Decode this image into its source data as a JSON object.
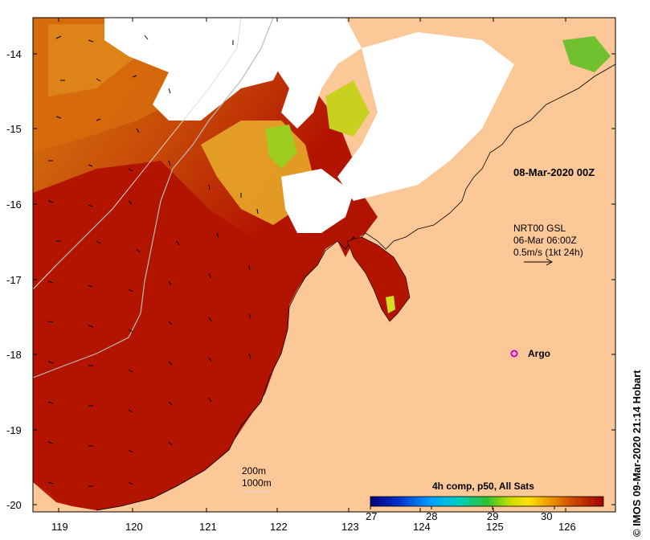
{
  "map": {
    "lon_ticks": [
      "119",
      "120",
      "121",
      "122",
      "123",
      "124",
      "125",
      "126"
    ],
    "lat_ticks": [
      "-14",
      "-15",
      "-16",
      "-17",
      "-18",
      "-19",
      "-20"
    ],
    "lon_range": [
      118.6,
      126.7
    ],
    "lat_range": [
      -20.1,
      -13.5
    ]
  },
  "annotations": {
    "analysis_time": "08-Mar-2020 00Z",
    "current_source": "NRT00 GSL",
    "current_time": "06-Mar 06:00Z",
    "current_scale": "0.5m/s (1kt 24h)",
    "argo_label": "Argo",
    "isobath_200": "200m",
    "isobath_1000": "1000m",
    "credit": "© IMOS 09-Mar-2020 21:14 Hobart"
  },
  "colorbar": {
    "title": "4h comp, p50, All Sats",
    "ticks": [
      "27",
      "28",
      "29",
      "30"
    ],
    "range": [
      27,
      30.8
    ]
  },
  "colors": {
    "land": "#fdc898",
    "cloud": "#ffffff",
    "warm_sst": "#b31400",
    "mid_sst": "#d4620a",
    "cool_sst": "#e8a020",
    "argo_marker": "#cc00cc"
  }
}
